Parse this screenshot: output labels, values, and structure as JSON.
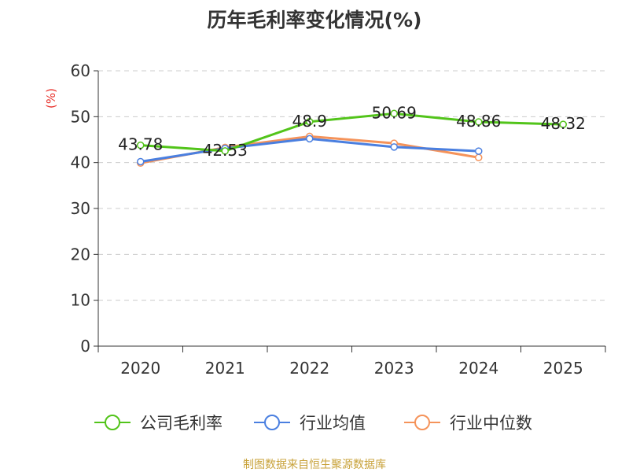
{
  "title": "历年毛利率变化情况(%)",
  "source": "制图数据来自恒生聚源数据库",
  "chart_data": {
    "type": "line",
    "title": "历年毛利率变化情况(%)",
    "ylabel": "(%)",
    "xlabel": "",
    "categories": [
      "2020",
      "2021",
      "2022",
      "2023",
      "2024",
      "2025"
    ],
    "ylim": [
      0,
      60
    ],
    "yticks": [
      0,
      10,
      20,
      30,
      40,
      50,
      60
    ],
    "grid": true,
    "legend": "bottom",
    "series": [
      {
        "name": "公司毛利率",
        "color": "#52c41a",
        "values": [
          43.78,
          42.53,
          48.9,
          50.69,
          48.86,
          48.32
        ],
        "labels": [
          "43.78",
          "42.53",
          "48.9",
          "50.69",
          "48.86",
          "48.32"
        ]
      },
      {
        "name": "行业均值",
        "color": "#4a7fe0",
        "values": [
          40.2,
          43.1,
          45.2,
          43.4,
          42.5,
          null
        ]
      },
      {
        "name": "行业中位数",
        "color": "#f5935a",
        "values": [
          39.9,
          43.3,
          45.7,
          44.2,
          41.1,
          null
        ]
      }
    ]
  }
}
